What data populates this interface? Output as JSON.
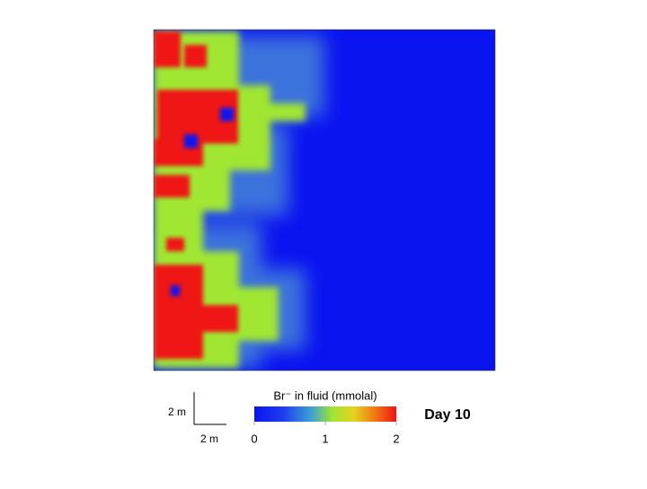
{
  "colorbar": {
    "label": "Br⁻ in fluid (mmolal)",
    "lim": [
      0,
      2
    ],
    "ticks": [
      0,
      1,
      2
    ]
  },
  "scale_bar": {
    "vertical_label": "2 m",
    "horizontal_label": "2 m"
  },
  "time_label": "Day 10"
}
